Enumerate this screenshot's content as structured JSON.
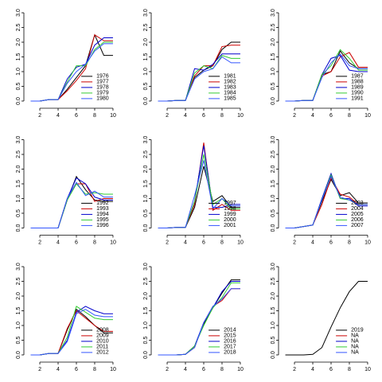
{
  "chart_data": [
    {
      "type": "line",
      "x": [
        1,
        2,
        3,
        4,
        5,
        6,
        7,
        8,
        9,
        10
      ],
      "xlim": [
        0.64,
        10.36
      ],
      "ylim": [
        -0.12,
        3.12
      ],
      "xticks": [
        2,
        4,
        6,
        8,
        10
      ],
      "yticks": [
        {
          "value": 0,
          "label": "0.0"
        },
        0.5,
        {
          "value": 1,
          "label": "1.0"
        },
        1.5,
        {
          "value": 2,
          "label": "2.0"
        },
        2.5,
        {
          "value": 3,
          "label": "3.0"
        }
      ],
      "legend": "bottomright",
      "series": [
        {
          "name": "1976",
          "color": "#000000",
          "values": [
            0,
            0,
            0.05,
            0.05,
            0.4,
            0.8,
            1.2,
            2.25,
            1.55,
            1.55
          ]
        },
        {
          "name": "1977",
          "color": "#cc0000",
          "values": [
            0,
            0,
            0.05,
            0.05,
            0.35,
            0.7,
            1.1,
            2.25,
            2.05,
            2.05
          ]
        },
        {
          "name": "1978",
          "color": "#0000cc",
          "values": [
            0,
            0,
            0.05,
            0.05,
            0.75,
            1.15,
            1.25,
            1.9,
            2.15,
            2.15
          ]
        },
        {
          "name": "1979",
          "color": "#33cc33",
          "values": [
            0,
            0,
            0.05,
            0.05,
            0.65,
            1.2,
            1.2,
            1.75,
            2.0,
            2.0
          ]
        },
        {
          "name": "1980",
          "color": "#3355ff",
          "values": [
            0,
            0,
            0.05,
            0.05,
            0.6,
            1.0,
            1.25,
            1.7,
            1.95,
            1.95
          ]
        }
      ]
    },
    {
      "type": "line",
      "x": [
        1,
        2,
        3,
        4,
        5,
        6,
        7,
        8,
        9,
        10
      ],
      "xlim": [
        0.64,
        10.36
      ],
      "ylim": [
        -0.12,
        3.12
      ],
      "xticks": [
        2,
        4,
        6,
        8,
        10
      ],
      "yticks": [
        {
          "value": 0,
          "label": "0.0"
        },
        0.5,
        {
          "value": 1,
          "label": "1.0"
        },
        1.5,
        {
          "value": 2,
          "label": "2.0"
        },
        2.5,
        {
          "value": 3,
          "label": "3.0"
        }
      ],
      "legend": "bottomright",
      "series": [
        {
          "name": "1981",
          "color": "#000000",
          "values": [
            0,
            0,
            0.02,
            0.02,
            0.8,
            1.05,
            1.2,
            1.75,
            2.0,
            2.0
          ]
        },
        {
          "name": "1982",
          "color": "#cc0000",
          "values": [
            0,
            0,
            0.02,
            0.02,
            0.85,
            1.2,
            1.2,
            1.85,
            1.9,
            1.9
          ]
        },
        {
          "name": "1983",
          "color": "#0000cc",
          "values": [
            0,
            0,
            0.02,
            0.02,
            1.1,
            1.05,
            1.25,
            1.6,
            1.6,
            1.6
          ]
        },
        {
          "name": "1984",
          "color": "#33cc33",
          "values": [
            0,
            0,
            0.02,
            0.02,
            0.95,
            1.2,
            1.1,
            1.55,
            1.45,
            1.45
          ]
        },
        {
          "name": "1985",
          "color": "#3355ff",
          "values": [
            0,
            0,
            0.02,
            0.02,
            0.75,
            1.0,
            1.1,
            1.5,
            1.3,
            1.3
          ]
        }
      ]
    },
    {
      "type": "line",
      "x": [
        1,
        2,
        3,
        4,
        5,
        6,
        7,
        8,
        9,
        10
      ],
      "xlim": [
        0.64,
        10.36
      ],
      "ylim": [
        -0.12,
        3.12
      ],
      "xticks": [
        2,
        4,
        6,
        8,
        10
      ],
      "yticks": [
        {
          "value": 0,
          "label": "0.0"
        },
        0.5,
        {
          "value": 1,
          "label": "1.0"
        },
        1.5,
        {
          "value": 2,
          "label": "2.0"
        },
        2.5,
        {
          "value": 3,
          "label": "3.0"
        }
      ],
      "legend": "bottomright",
      "series": [
        {
          "name": "1987",
          "color": "#000000",
          "values": [
            0,
            0,
            0.02,
            0.02,
            0.9,
            1.0,
            1.7,
            1.3,
            1.1,
            1.1
          ]
        },
        {
          "name": "1988",
          "color": "#cc0000",
          "values": [
            0,
            0,
            0.02,
            0.02,
            0.85,
            1.0,
            1.5,
            1.65,
            1.15,
            1.15
          ]
        },
        {
          "name": "1989",
          "color": "#0000cc",
          "values": [
            0,
            0,
            0.02,
            0.02,
            0.9,
            1.45,
            1.55,
            1.05,
            1.0,
            1.0
          ]
        },
        {
          "name": "1990",
          "color": "#33cc33",
          "values": [
            0,
            0,
            0.02,
            0.02,
            0.9,
            1.2,
            1.75,
            1.45,
            1.05,
            1.05
          ]
        },
        {
          "name": "1991",
          "color": "#3355ff",
          "values": [
            0,
            0,
            0.02,
            0.02,
            0.8,
            1.3,
            1.6,
            1.2,
            1.1,
            1.1
          ]
        }
      ]
    },
    {
      "type": "line",
      "x": [
        1,
        2,
        3,
        4,
        5,
        6,
        7,
        8,
        9,
        10
      ],
      "xlim": [
        0.64,
        10.36
      ],
      "ylim": [
        -0.12,
        3.12
      ],
      "xticks": [
        2,
        4,
        6,
        8,
        10
      ],
      "yticks": [
        {
          "value": 0,
          "label": "0.0"
        },
        0.5,
        {
          "value": 1,
          "label": "1.0"
        },
        1.5,
        {
          "value": 2,
          "label": "2.0"
        },
        2.5,
        {
          "value": 3,
          "label": "3.0"
        }
      ],
      "legend": "bottomright",
      "series": [
        {
          "name": "1992",
          "color": "#000000",
          "values": [
            0,
            0,
            0,
            0,
            0.95,
            1.75,
            1.3,
            0.95,
            0.9,
            0.9
          ]
        },
        {
          "name": "1993",
          "color": "#cc0000",
          "values": [
            0,
            0,
            0,
            0,
            1.0,
            1.5,
            1.5,
            0.9,
            1.0,
            1.0
          ]
        },
        {
          "name": "1994",
          "color": "#0000cc",
          "values": [
            0,
            0,
            0,
            0,
            1.0,
            1.7,
            1.5,
            1.05,
            0.95,
            0.95
          ]
        },
        {
          "name": "1995",
          "color": "#33cc33",
          "values": [
            0,
            0,
            0,
            0,
            0.95,
            1.5,
            1.15,
            1.2,
            1.15,
            1.15
          ]
        },
        {
          "name": "1996",
          "color": "#3355ff",
          "values": [
            0,
            0,
            0,
            0,
            1.0,
            1.55,
            1.1,
            1.25,
            1.05,
            1.05
          ]
        }
      ]
    },
    {
      "type": "line",
      "x": [
        1,
        2,
        3,
        4,
        5,
        6,
        7,
        8,
        9,
        10
      ],
      "xlim": [
        0.64,
        10.36
      ],
      "ylim": [
        -0.12,
        3.12
      ],
      "xticks": [
        2,
        4,
        6,
        8,
        10
      ],
      "yticks": [
        {
          "value": 0,
          "label": "0.0"
        },
        0.5,
        {
          "value": 1,
          "label": "1.0"
        },
        1.5,
        {
          "value": 2,
          "label": "2.0"
        },
        2.5,
        {
          "value": 3,
          "label": "3.0"
        }
      ],
      "legend": "bottomright",
      "series": [
        {
          "name": "1997",
          "color": "#000000",
          "values": [
            0,
            0,
            0.02,
            0.02,
            0.7,
            2.1,
            0.9,
            1.1,
            0.7,
            0.7
          ]
        },
        {
          "name": "1998",
          "color": "#cc0000",
          "values": [
            0,
            0,
            0.02,
            0.02,
            0.8,
            2.9,
            0.6,
            0.8,
            0.6,
            0.6
          ]
        },
        {
          "name": "1999",
          "color": "#0000cc",
          "values": [
            0,
            0,
            0.02,
            0.02,
            0.9,
            2.8,
            0.7,
            0.7,
            0.8,
            0.8
          ]
        },
        {
          "name": "2000",
          "color": "#33cc33",
          "values": [
            0,
            0,
            0.02,
            0.02,
            0.9,
            2.5,
            0.8,
            1.0,
            0.65,
            0.65
          ]
        },
        {
          "name": "2001",
          "color": "#3355ff",
          "values": [
            0,
            0,
            0.02,
            0.02,
            1.1,
            2.3,
            0.65,
            1.0,
            0.75,
            0.75
          ]
        }
      ]
    },
    {
      "type": "line",
      "x": [
        1,
        2,
        3,
        4,
        5,
        6,
        7,
        8,
        9,
        10
      ],
      "xlim": [
        0.64,
        10.36
      ],
      "ylim": [
        -0.12,
        3.12
      ],
      "xticks": [
        2,
        4,
        6,
        8,
        10
      ],
      "yticks": [
        {
          "value": 0,
          "label": "0.0"
        },
        0.5,
        {
          "value": 1,
          "label": "1.0"
        },
        1.5,
        {
          "value": 2,
          "label": "2.0"
        },
        2.5,
        {
          "value": 3,
          "label": "3.0"
        }
      ],
      "legend": "bottomright",
      "series": [
        {
          "name": "2003",
          "color": "#000000",
          "values": [
            0,
            0,
            0.05,
            0.1,
            0.9,
            1.65,
            1.1,
            1.2,
            0.85,
            0.85
          ]
        },
        {
          "name": "2004",
          "color": "#cc0000",
          "values": [
            0,
            0,
            0.05,
            0.1,
            0.8,
            1.7,
            1.15,
            1.05,
            0.8,
            0.8
          ]
        },
        {
          "name": "2005",
          "color": "#0000cc",
          "values": [
            0,
            0,
            0.05,
            0.1,
            1.0,
            1.85,
            1.0,
            1.0,
            0.75,
            0.75
          ]
        },
        {
          "name": "2006",
          "color": "#33cc33",
          "values": [
            0,
            0,
            0.05,
            0.1,
            0.95,
            1.8,
            1.0,
            0.95,
            0.8,
            0.8
          ]
        },
        {
          "name": "2007",
          "color": "#3355ff",
          "values": [
            0,
            0,
            0.05,
            0.1,
            0.95,
            1.75,
            1.05,
            0.95,
            0.8,
            0.8
          ]
        }
      ]
    },
    {
      "type": "line",
      "x": [
        1,
        2,
        3,
        4,
        5,
        6,
        7,
        8,
        9,
        10
      ],
      "xlim": [
        0.64,
        10.36
      ],
      "ylim": [
        -0.12,
        3.12
      ],
      "xticks": [
        2,
        4,
        6,
        8,
        10
      ],
      "yticks": [
        {
          "value": 0,
          "label": "0.0"
        },
        0.5,
        {
          "value": 1,
          "label": "1.0"
        },
        1.5,
        {
          "value": 2,
          "label": "2.0"
        },
        2.5,
        {
          "value": 3,
          "label": "3.0"
        }
      ],
      "legend": "bottomright",
      "series": [
        {
          "name": "2008",
          "color": "#000000",
          "values": [
            0,
            0,
            0.05,
            0.05,
            0.85,
            1.55,
            1.3,
            1.0,
            0.75,
            0.75
          ]
        },
        {
          "name": "2009",
          "color": "#cc0000",
          "values": [
            0,
            0,
            0.05,
            0.05,
            0.9,
            1.5,
            1.25,
            1.0,
            0.8,
            0.8
          ]
        },
        {
          "name": "2010",
          "color": "#0000cc",
          "values": [
            0,
            0,
            0.05,
            0.05,
            0.5,
            1.45,
            1.65,
            1.5,
            1.4,
            1.4
          ]
        },
        {
          "name": "2011",
          "color": "#33cc33",
          "values": [
            0,
            0,
            0.05,
            0.05,
            0.6,
            1.65,
            1.45,
            1.25,
            1.2,
            1.2
          ]
        },
        {
          "name": "2012",
          "color": "#3355ff",
          "values": [
            0,
            0,
            0.05,
            0.05,
            0.45,
            1.4,
            1.55,
            1.35,
            1.3,
            1.3
          ]
        }
      ]
    },
    {
      "type": "line",
      "x": [
        1,
        2,
        3,
        4,
        5,
        6,
        7,
        8,
        9,
        10
      ],
      "xlim": [
        0.64,
        10.36
      ],
      "ylim": [
        -0.12,
        3.12
      ],
      "xticks": [
        2,
        4,
        6,
        8,
        10
      ],
      "yticks": [
        {
          "value": 0,
          "label": "0.0"
        },
        0.5,
        {
          "value": 1,
          "label": "1.0"
        },
        1.5,
        {
          "value": 2,
          "label": "2.0"
        },
        2.5,
        {
          "value": 3,
          "label": "3.0"
        }
      ],
      "legend": "bottomright",
      "series": [
        {
          "name": "2014",
          "color": "#000000",
          "values": [
            0,
            0,
            0,
            0.02,
            0.3,
            1.05,
            1.6,
            2.1,
            2.55,
            2.55
          ]
        },
        {
          "name": "2015",
          "color": "#cc0000",
          "values": [
            0,
            0,
            0,
            0.02,
            0.25,
            1.1,
            1.65,
            1.85,
            2.25,
            2.25
          ]
        },
        {
          "name": "2016",
          "color": "#0000cc",
          "values": [
            0,
            0,
            0,
            0.02,
            0.3,
            1.1,
            1.6,
            2.15,
            2.5,
            2.5
          ]
        },
        {
          "name": "2017",
          "color": "#33cc33",
          "values": [
            0,
            0,
            0,
            0.02,
            0.3,
            1.0,
            1.6,
            1.95,
            2.45,
            2.45
          ]
        },
        {
          "name": "2018",
          "color": "#3355ff",
          "values": [
            0,
            0,
            0,
            0.02,
            0.25,
            1.1,
            1.65,
            1.9,
            2.25,
            2.25
          ]
        }
      ]
    },
    {
      "type": "line",
      "x": [
        1,
        2,
        3,
        4,
        5,
        6,
        7,
        8,
        9,
        10
      ],
      "xlim": [
        0.64,
        10.36
      ],
      "ylim": [
        -0.12,
        3.12
      ],
      "xticks": [
        2,
        4,
        6,
        8,
        10
      ],
      "yticks": [
        {
          "value": 0,
          "label": "0.0"
        },
        0.5,
        {
          "value": 1,
          "label": "1.0"
        },
        1.5,
        {
          "value": 2,
          "label": "2.0"
        },
        2.5,
        {
          "value": 3,
          "label": "3.0"
        }
      ],
      "legend": "bottomright",
      "series": [
        {
          "name": "2019",
          "color": "#000000",
          "values": [
            0,
            0,
            0,
            0.02,
            0.25,
            0.95,
            1.6,
            2.15,
            2.5,
            2.5
          ]
        },
        {
          "name": "NA",
          "color": "#cc0000",
          "values": [
            null,
            null,
            null,
            null,
            null,
            null,
            null,
            null,
            null,
            null
          ]
        },
        {
          "name": "NA",
          "color": "#0000cc",
          "values": [
            null,
            null,
            null,
            null,
            null,
            null,
            null,
            null,
            null,
            null
          ]
        },
        {
          "name": "NA",
          "color": "#33cc33",
          "values": [
            null,
            null,
            null,
            null,
            null,
            null,
            null,
            null,
            null,
            null
          ]
        },
        {
          "name": "NA",
          "color": "#3355ff",
          "values": [
            null,
            null,
            null,
            null,
            null,
            null,
            null,
            null,
            null,
            null
          ]
        }
      ]
    }
  ]
}
